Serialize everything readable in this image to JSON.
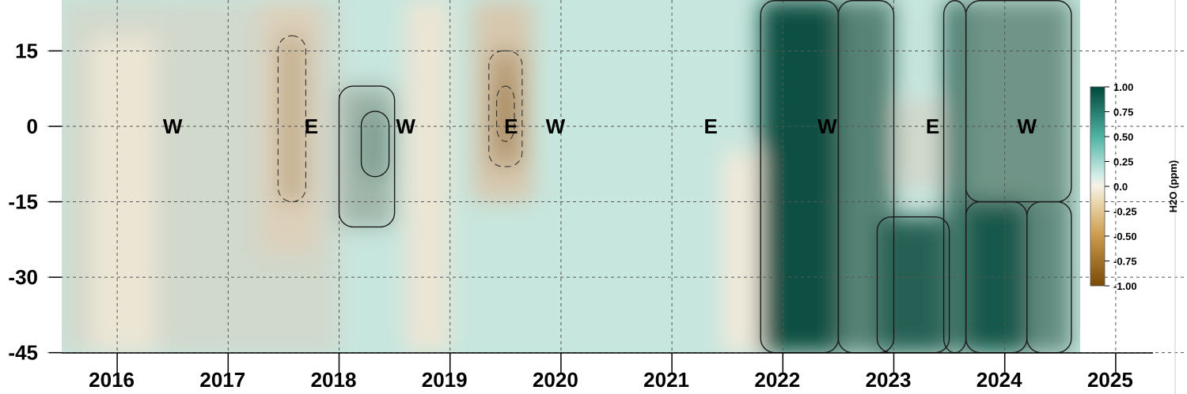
{
  "chart_data": {
    "type": "heatmap",
    "title": "",
    "xlabel": "",
    "ylabel": "",
    "x_ticks": [
      "2016",
      "2017",
      "2018",
      "2019",
      "2020",
      "2021",
      "2022",
      "2023",
      "2024",
      "2025"
    ],
    "y_ticks": [
      "15",
      "0",
      "-15",
      "-30",
      "-45"
    ],
    "ylim": [
      -45,
      25
    ],
    "grid": true,
    "phase_labels": [
      {
        "text": "W",
        "year": 2016.5
      },
      {
        "text": "E",
        "year": 2017.75
      },
      {
        "text": "W",
        "year": 2018.6
      },
      {
        "text": "E",
        "year": 2019.55
      },
      {
        "text": "W",
        "year": 2019.95
      },
      {
        "text": "E",
        "year": 2021.35
      },
      {
        "text": "W",
        "year": 2022.4
      },
      {
        "text": "E",
        "year": 2023.35
      },
      {
        "text": "W",
        "year": 2024.2
      }
    ],
    "colorbar": {
      "label": "H2O (ppm)",
      "tick_labels": [
        "1.00",
        "0.75",
        "0.50",
        "0.25",
        "0.0",
        "-0.25",
        "-0.50",
        "-0.75",
        "-1.00"
      ],
      "range": [
        -1.0,
        1.0
      ]
    },
    "colors": {
      "negative_max": "#7a4a08",
      "neutral": "#f6f2e6",
      "positive_max": "#00473a"
    },
    "field_regions": [
      {
        "x0": 2015.5,
        "x1": 2016.5,
        "y0": -45,
        "y1": 25,
        "value": 0.15
      },
      {
        "x0": 2015.75,
        "x1": 2016.35,
        "y0": -45,
        "y1": 18,
        "value": -0.08
      },
      {
        "x0": 2016.5,
        "x1": 2018.0,
        "y0": -45,
        "y1": 25,
        "value": 0.15
      },
      {
        "x0": 2017.3,
        "x1": 2017.8,
        "y0": -25,
        "y1": 25,
        "value": -0.2
      },
      {
        "x0": 2017.45,
        "x1": 2017.7,
        "y0": -15,
        "y1": 18,
        "value": -0.4
      },
      {
        "x0": 2018.0,
        "x1": 2018.5,
        "y0": -20,
        "y1": 8,
        "value": 0.35
      },
      {
        "x0": 2018.2,
        "x1": 2018.45,
        "y0": -10,
        "y1": 3,
        "value": 0.5
      },
      {
        "x0": 2018.6,
        "x1": 2019.0,
        "y0": -45,
        "y1": 25,
        "value": -0.08
      },
      {
        "x0": 2019.2,
        "x1": 2019.75,
        "y0": -15,
        "y1": 25,
        "value": -0.25
      },
      {
        "x0": 2019.35,
        "x1": 2019.65,
        "y0": -8,
        "y1": 15,
        "value": -0.5
      },
      {
        "x0": 2019.42,
        "x1": 2019.58,
        "y0": -3,
        "y1": 8,
        "value": -0.65
      },
      {
        "x0": 2021.45,
        "x1": 2022.0,
        "y0": -45,
        "y1": -5,
        "value": -0.05
      },
      {
        "x0": 2021.8,
        "x1": 2022.5,
        "y0": -45,
        "y1": 25,
        "value": 0.95
      },
      {
        "x0": 2022.5,
        "x1": 2023.0,
        "y0": -45,
        "y1": 25,
        "value": 0.65
      },
      {
        "x0": 2022.85,
        "x1": 2023.5,
        "y0": -45,
        "y1": -18,
        "value": 0.85
      },
      {
        "x0": 2023.0,
        "x1": 2023.6,
        "y0": -12,
        "y1": 5,
        "value": 0.15
      },
      {
        "x0": 2023.45,
        "x1": 2023.65,
        "y0": -45,
        "y1": 25,
        "value": 0.7
      },
      {
        "x0": 2023.65,
        "x1": 2024.2,
        "y0": -45,
        "y1": -15,
        "value": 0.9
      },
      {
        "x0": 2023.65,
        "x1": 2024.6,
        "y0": -15,
        "y1": 25,
        "value": 0.55
      },
      {
        "x0": 2024.2,
        "x1": 2024.6,
        "y0": -45,
        "y1": -15,
        "value": 0.6
      }
    ]
  }
}
